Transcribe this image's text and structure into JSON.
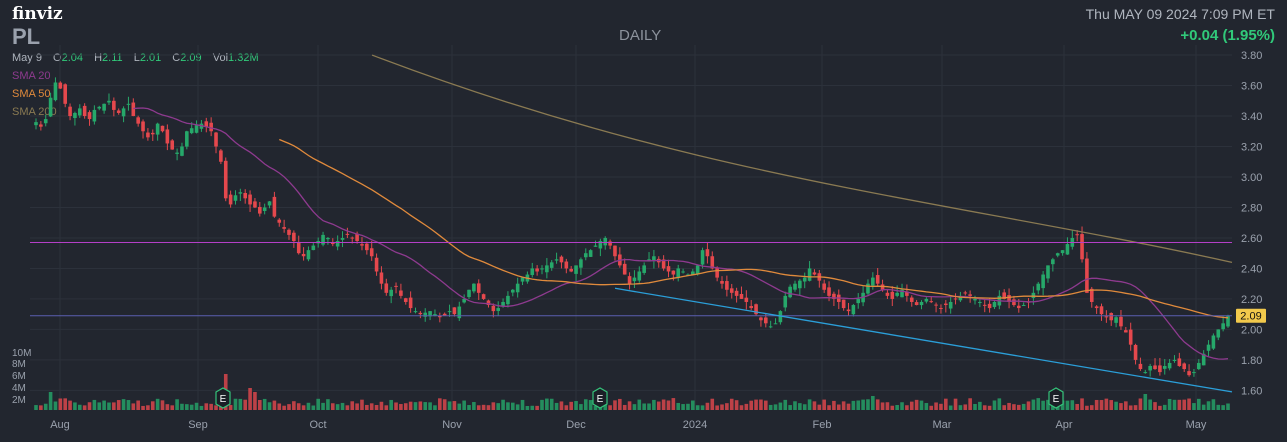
{
  "header": {
    "brand": "finviz",
    "ticker": "PL",
    "timeframe": "DAILY",
    "datetime": "Thu MAY 09 2024 7:09 PM ET",
    "change": "+0.04 (1.95%)"
  },
  "ohlc": {
    "date_label": "May 9",
    "open_label": "O",
    "open": "2.04",
    "high_label": "H",
    "high": "2.11",
    "low_label": "L",
    "low": "2.01",
    "close_label": "C",
    "close": "2.09",
    "vol_label": "Vol",
    "volume": "1.32M"
  },
  "legend": [
    {
      "label": "SMA 20",
      "color": "#8e3a8f"
    },
    {
      "label": "SMA 50",
      "color": "#e08a3c"
    },
    {
      "label": "SMA 200",
      "color": "#8a7a52"
    }
  ],
  "last_price_label": "2.09",
  "colors": {
    "up": "#26a86a",
    "down": "#e5484d",
    "background": "#22262f",
    "resistance": "#b43fc7",
    "trendline": "#2b9fd9",
    "price_line": "#5a5fb0"
  },
  "chart_data": {
    "type": "candlestick",
    "y_range": [
      1.55,
      3.82
    ],
    "y_ticks": [
      "3.80",
      "3.60",
      "3.40",
      "3.20",
      "3.00",
      "2.80",
      "2.60",
      "2.40",
      "2.20",
      "2.00",
      "1.80",
      "1.60"
    ],
    "x_ticks": [
      "Aug",
      "Sep",
      "Oct",
      "Nov",
      "Dec",
      "2024",
      "Feb",
      "Mar",
      "Apr",
      "May"
    ],
    "volume_ticks": [
      "10M",
      "8M",
      "6M",
      "4M",
      "2M"
    ],
    "earnings_marker": "E",
    "earnings_markers_months": [
      "Sep",
      "Dec",
      "Apr"
    ],
    "horizontal_levels": [
      2.57,
      2.09
    ],
    "trendline": {
      "from": 2.27,
      "to": 1.59
    },
    "sma200": {
      "from": 3.8,
      "to": 2.44
    },
    "grid": true,
    "price_series": [
      3.36,
      3.33,
      3.38,
      3.52,
      3.62,
      3.58,
      3.48,
      3.4,
      3.42,
      3.45,
      3.4,
      3.38,
      3.44,
      3.46,
      3.48,
      3.5,
      3.44,
      3.42,
      3.45,
      3.48,
      3.4,
      3.35,
      3.3,
      3.26,
      3.28,
      3.35,
      3.3,
      3.22,
      3.18,
      3.16,
      3.2,
      3.3,
      3.32,
      3.34,
      3.35,
      3.33,
      3.3,
      3.2,
      3.1,
      2.86,
      2.82,
      2.88,
      2.9,
      2.86,
      2.82,
      2.8,
      2.76,
      2.8,
      2.84,
      2.74,
      2.7,
      2.66,
      2.62,
      2.58,
      2.5,
      2.48,
      2.52,
      2.55,
      2.58,
      2.62,
      2.6,
      2.56,
      2.58,
      2.6,
      2.62,
      2.6,
      2.58,
      2.55,
      2.52,
      2.48,
      2.38,
      2.3,
      2.24,
      2.26,
      2.28,
      2.22,
      2.18,
      2.14,
      2.12,
      2.1,
      2.11,
      2.12,
      2.1,
      2.08,
      2.09,
      2.12,
      2.1,
      2.15,
      2.2,
      2.26,
      2.3,
      2.24,
      2.2,
      2.16,
      2.12,
      2.14,
      2.18,
      2.22,
      2.26,
      2.3,
      2.34,
      2.36,
      2.4,
      2.38,
      2.4,
      2.42,
      2.44,
      2.46,
      2.44,
      2.4,
      2.38,
      2.42,
      2.46,
      2.5,
      2.52,
      2.55,
      2.58,
      2.6,
      2.55,
      2.48,
      2.42,
      2.36,
      2.3,
      2.34,
      2.38,
      2.42,
      2.46,
      2.48,
      2.44,
      2.4,
      2.38,
      2.36,
      2.4,
      2.38,
      2.36,
      2.38,
      2.42,
      2.52,
      2.48,
      2.4,
      2.34,
      2.3,
      2.26,
      2.24,
      2.22,
      2.2,
      2.18,
      2.14,
      2.1,
      2.06,
      2.04,
      2.02,
      2.04,
      2.12,
      2.22,
      2.28,
      2.3,
      2.32,
      2.34,
      2.4,
      2.36,
      2.32,
      2.26,
      2.22,
      2.2,
      2.18,
      2.14,
      2.12,
      2.16,
      2.2,
      2.24,
      2.3,
      2.34,
      2.3,
      2.26,
      2.22,
      2.2,
      2.24,
      2.26,
      2.22,
      2.18,
      2.16,
      2.18,
      2.2,
      2.18,
      2.16,
      2.14,
      2.16,
      2.18,
      2.2,
      2.22,
      2.24,
      2.22,
      2.2,
      2.18,
      2.16,
      2.14,
      2.18,
      2.22,
      2.2,
      2.18,
      2.16,
      2.14,
      2.16,
      2.18,
      2.24,
      2.3,
      2.36,
      2.42,
      2.46,
      2.5,
      2.52,
      2.56,
      2.6,
      2.62,
      2.46,
      2.24,
      2.18,
      2.14,
      2.1,
      2.08,
      2.06,
      2.08,
      2.02,
      1.98,
      1.9,
      1.8,
      1.74,
      1.72,
      1.76,
      1.74,
      1.72,
      1.76,
      1.78,
      1.8,
      1.76,
      1.74,
      1.7,
      1.72,
      1.78,
      1.84,
      1.9,
      1.96,
      2.0,
      2.04,
      2.09
    ]
  }
}
